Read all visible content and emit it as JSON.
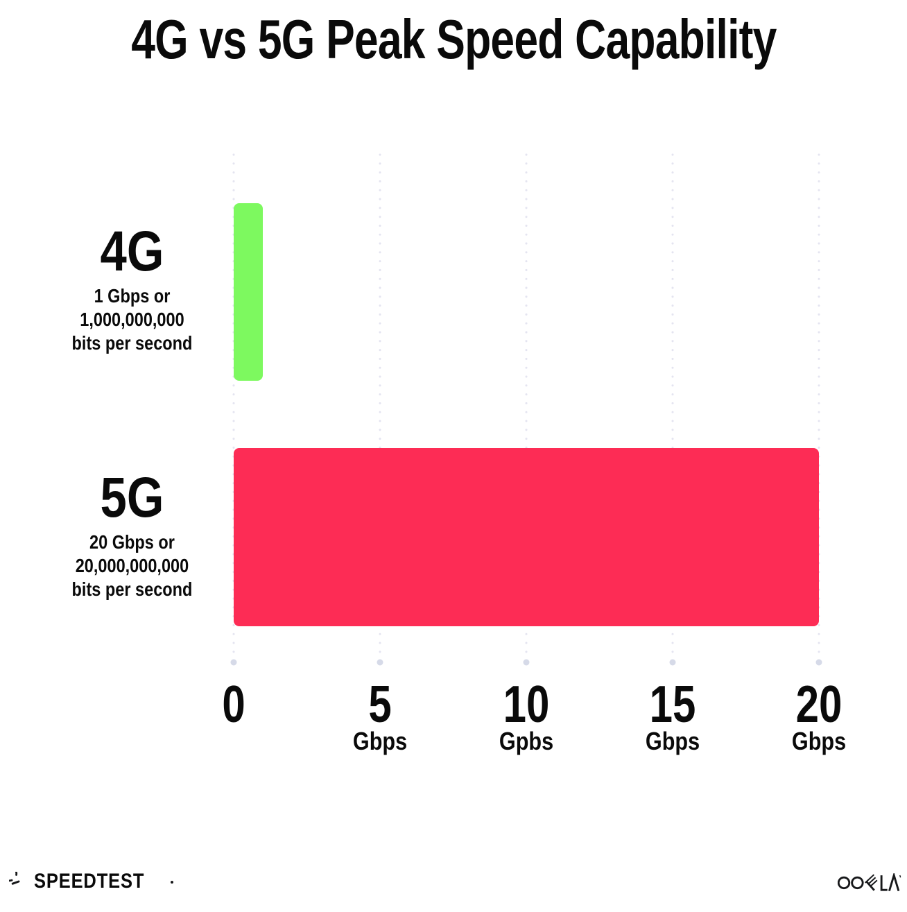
{
  "title": "4G vs 5G Peak Speed Capability",
  "chart_data": {
    "type": "bar",
    "orientation": "horizontal",
    "title": "4G vs 5G Peak Speed Capability",
    "categories": [
      "4G",
      "5G"
    ],
    "values": [
      1,
      20
    ],
    "value_unit": "Gbps",
    "xlim": [
      0,
      20
    ],
    "grid": "dotted-vertical",
    "gridline_color": "#E4E4F0",
    "grid_end_dot_color": "#D6DAE8",
    "series": [
      {
        "label": "4G",
        "value": 1,
        "color": "#7DF95F",
        "sublabel_lines": [
          "1 Gbps or",
          "1,000,000,000",
          "bits per second"
        ]
      },
      {
        "label": "5G",
        "value": 20,
        "color": "#FD2C55",
        "sublabel_lines": [
          "20 Gbps or",
          "20,000,000,000",
          "bits per second"
        ]
      }
    ],
    "x_ticks": [
      {
        "number": "0",
        "unit": ""
      },
      {
        "number": "5",
        "unit": "Gbps"
      },
      {
        "number": "10",
        "unit": "Gpbs"
      },
      {
        "number": "15",
        "unit": "Gbps"
      },
      {
        "number": "20",
        "unit": "Gbps"
      }
    ]
  },
  "footer": {
    "speedtest_label": "SPEEDTEST",
    "ookla_label": "OOKLA",
    "speedtest_icon": "speedometer-gauge-icon",
    "ookla_icon": "ookla-wordmark"
  }
}
